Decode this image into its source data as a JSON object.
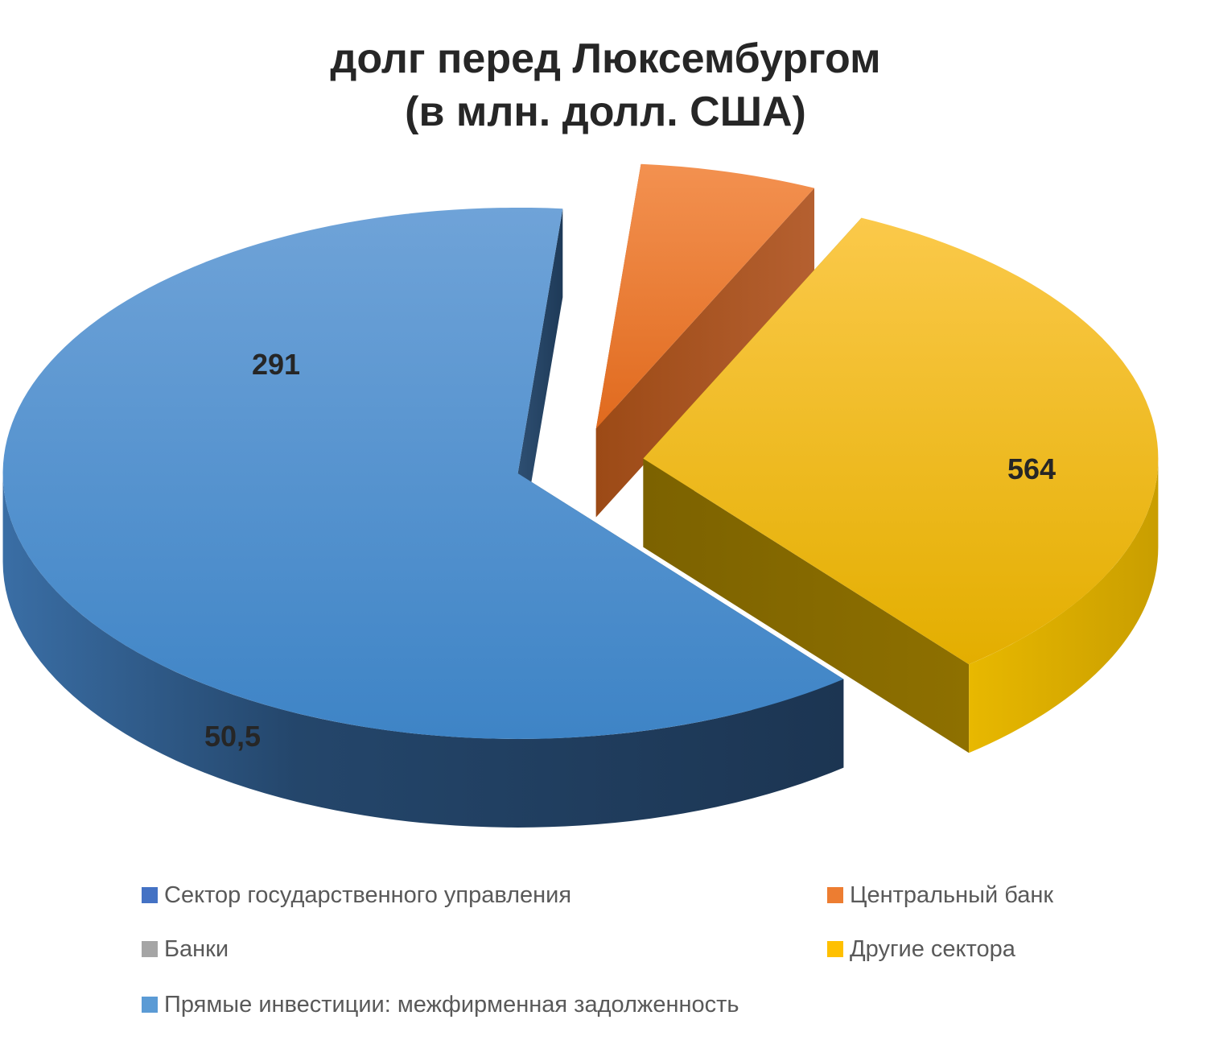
{
  "chart_data": {
    "type": "pie",
    "style": "3d-exploded",
    "title_lines": [
      "долг перед Люксембургом",
      "(в млн. долл. США)"
    ],
    "series": [
      {
        "name": "Сектор государственного управления",
        "value": null,
        "color": "#4472C4"
      },
      {
        "name": "Центральный банк",
        "value": 50.5,
        "label": "50,5",
        "color": "#ED7D31"
      },
      {
        "name": "Банки",
        "value": null,
        "color": "#A5A5A5"
      },
      {
        "name": "Другие сектора",
        "value": 291,
        "label": "291",
        "color": "#FFC000"
      },
      {
        "name": "Прямые инвестиции: межфирменная задолженность",
        "value": 564,
        "label": "564",
        "color": "#5B9BD5"
      }
    ],
    "legend_position": "bottom"
  }
}
